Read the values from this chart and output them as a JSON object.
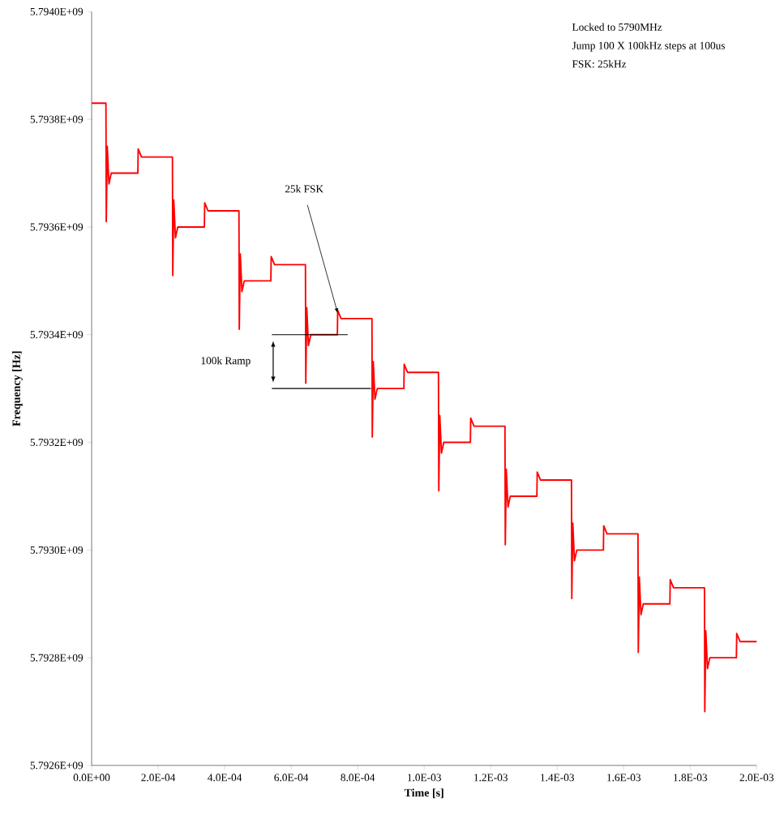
{
  "chart_data": {
    "type": "line",
    "xlabel": "Time [s]",
    "ylabel": "Frequency [Hz]",
    "xlim": [
      0,
      0.002
    ],
    "ylim": [
      5792600000,
      5794000000
    ],
    "xticks": [
      {
        "value": 0,
        "label": "0.0E+00"
      },
      {
        "value": 0.0002,
        "label": "2.0E-04"
      },
      {
        "value": 0.0004,
        "label": "4.0E-04"
      },
      {
        "value": 0.0006,
        "label": "6.0E-04"
      },
      {
        "value": 0.0008,
        "label": "8.0E-04"
      },
      {
        "value": 0.001,
        "label": "1.0E-03"
      },
      {
        "value": 0.0012,
        "label": "1.2E-03"
      },
      {
        "value": 0.0014,
        "label": "1.4E-03"
      },
      {
        "value": 0.0016,
        "label": "1.6E-03"
      },
      {
        "value": 0.0018,
        "label": "1.8E-03"
      },
      {
        "value": 0.002,
        "label": "2.0E-03"
      }
    ],
    "yticks": [
      {
        "value": 5792600000,
        "label": "5.7926E+09"
      },
      {
        "value": 5792800000,
        "label": "5.7928E+09"
      },
      {
        "value": 5793000000,
        "label": "5.7930E+09"
      },
      {
        "value": 5793200000,
        "label": "5.7932E+09"
      },
      {
        "value": 5793400000,
        "label": "5.7934E+09"
      },
      {
        "value": 5793600000,
        "label": "5.7936E+09"
      },
      {
        "value": 5793800000,
        "label": "5.7938E+09"
      },
      {
        "value": 5794000000,
        "label": "5.7940E+09"
      }
    ],
    "grid": false,
    "marker": "none",
    "line_style": "solid",
    "annotations": [
      "Locked to 5790MHz",
      "Jump 100 X 100kHz steps at 100us",
      "FSK: 25kHz",
      {
        "text": "25k FSK",
        "x": 0.00074,
        "y": 5793440000
      }
    ],
    "ref_lines": [
      {
        "axis": "y",
        "value": 5793400000,
        "color": "#000000"
      },
      {
        "axis": "y",
        "value": 5793300000,
        "label": "100k Ramp",
        "color": "#000000"
      }
    ],
    "series": [
      {
        "color": "#ff0000",
        "x": [
          0,
          4.3e-05,
          4.4e-05,
          4.7e-05,
          5.2e-05,
          5.9e-05,
          0.000139,
          0.00014,
          0.00015,
          0.000243,
          0.000244,
          0.000247,
          0.000252,
          0.000259,
          0.000339,
          0.00034,
          0.00035,
          0.000443,
          0.000444,
          0.000447,
          0.000452,
          0.000459,
          0.000539,
          0.00054,
          0.00055,
          0.000643,
          0.000644,
          0.000647,
          0.000652,
          0.000659,
          0.000739,
          0.00074,
          0.00075,
          0.000843,
          0.000844,
          0.000847,
          0.000852,
          0.000859,
          0.000939,
          0.00094,
          0.00095,
          0.001043,
          0.001044,
          0.001047,
          0.001052,
          0.001059,
          0.001139,
          0.00114,
          0.00115,
          0.001243,
          0.001244,
          0.001247,
          0.001252,
          0.001259,
          0.001339,
          0.00134,
          0.00135,
          0.001443,
          0.001444,
          0.001447,
          0.001452,
          0.001459,
          0.001539,
          0.00154,
          0.00155,
          0.001643,
          0.001644,
          0.001647,
          0.001652,
          0.001659,
          0.001739,
          0.00174,
          0.00175,
          0.001843,
          0.001844,
          0.001847,
          0.001852,
          0.001859,
          0.001939,
          0.00194,
          0.00195,
          0.002
        ],
        "values": [
          5793830000,
          5793830000,
          5793610000,
          5793750000,
          5793680000,
          5793700000,
          5793700000,
          5793745000,
          5793730000,
          5793730000,
          5793510000,
          5793650000,
          5793580000,
          5793600000,
          5793600000,
          5793645000,
          5793630000,
          5793630000,
          5793410000,
          5793550000,
          5793480000,
          5793500000,
          5793500000,
          5793545000,
          5793530000,
          5793530000,
          5793310000,
          5793450000,
          5793380000,
          5793400000,
          5793400000,
          5793445000,
          5793430000,
          5793430000,
          5793210000,
          5793350000,
          5793280000,
          5793300000,
          5793300000,
          5793345000,
          5793330000,
          5793330000,
          5793110000,
          5793250000,
          5793180000,
          5793200000,
          5793200000,
          5793245000,
          5793230000,
          5793230000,
          5793010000,
          5793150000,
          5793080000,
          5793100000,
          5793100000,
          5793145000,
          5793130000,
          5793130000,
          5792910000,
          5793050000,
          5792980000,
          5793000000,
          5793000000,
          5793045000,
          5793030000,
          5793030000,
          5792810000,
          5792950000,
          5792880000,
          5792900000,
          5792900000,
          5792945000,
          5792930000,
          5792930000,
          5792700000,
          5792850000,
          5792780000,
          5792800000,
          5792800000,
          5792845000,
          5792830000,
          5792830000
        ]
      }
    ]
  }
}
